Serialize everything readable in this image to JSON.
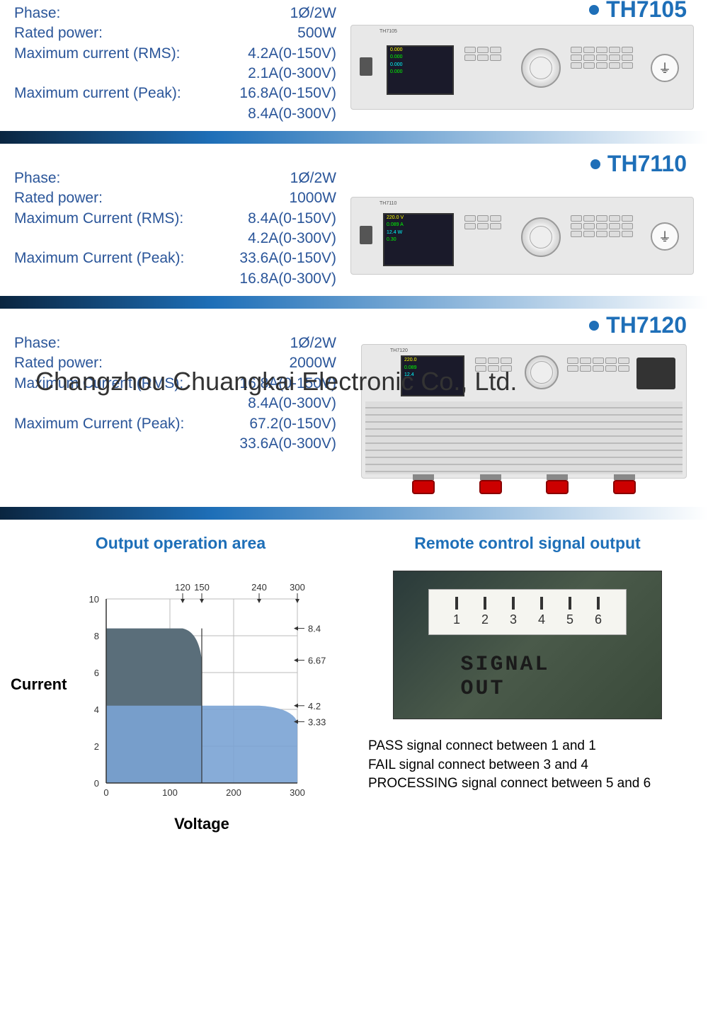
{
  "products": [
    {
      "title": "TH7105",
      "specs": [
        {
          "label": "Phase:",
          "value": "1Ø/2W"
        },
        {
          "label": "Rated power:",
          "value": "500W"
        },
        {
          "label": "Maximum current (RMS):",
          "value": "4.2A(0-150V)"
        },
        {
          "label": "",
          "value": "2.1A(0-300V)"
        },
        {
          "label": "Maximum current (Peak):",
          "value": "16.8A(0-150V)"
        },
        {
          "label": "",
          "value": "8.4A(0-300V)"
        }
      ]
    },
    {
      "title": "TH7110",
      "specs": [
        {
          "label": "Phase:",
          "value": "1Ø/2W"
        },
        {
          "label": "Rated power:",
          "value": "1000W"
        },
        {
          "label": "Maximum Current (RMS):",
          "value": "8.4A(0-150V)"
        },
        {
          "label": "",
          "value": "4.2A(0-300V)"
        },
        {
          "label": "Maximum Current (Peak):",
          "value": "33.6A(0-150V)"
        },
        {
          "label": "",
          "value": "16.8A(0-300V)"
        }
      ]
    },
    {
      "title": "TH7120",
      "specs": [
        {
          "label": "Phase:",
          "value": "1Ø/2W"
        },
        {
          "label": "Rated power:",
          "value": "2000W"
        },
        {
          "label": "Maximum Current (RMS):",
          "value": "16.8A(0-150V)"
        },
        {
          "label": "",
          "value": "8.4A(0-300V)"
        },
        {
          "label": "Maximum Current (Peak):",
          "value": "67.2(0-150V)"
        },
        {
          "label": "",
          "value": "33.6A(0-300V)"
        }
      ]
    }
  ],
  "watermark": "Changzhou Chuangkai Electronic Co., Ltd.",
  "chart": {
    "title": "Output operation area",
    "xlabel": "Voltage",
    "ylabel": "Current",
    "x_ticks": [
      0,
      100,
      200,
      300
    ],
    "y_ticks": [
      0,
      2,
      4,
      6,
      8,
      10
    ],
    "top_labels": [
      120,
      150,
      240,
      300
    ],
    "right_labels": [
      8.4,
      6.67,
      4.2,
      3.33
    ],
    "region1_color": "#5a6e7a",
    "region2_color": "#7aa3d4",
    "grid_color": "#bbb",
    "axis_color": "#333",
    "text_color": "#333"
  },
  "remote": {
    "title": "Remote control signal output",
    "connector_label": "SIGNAL OUT",
    "pins": [
      "1",
      "2",
      "3",
      "4",
      "5",
      "6"
    ],
    "notes": [
      "PASS signal connect between 1 and 1",
      "FAIL signal connect between 3 and 4",
      "PROCESSING signal connect between 5 and 6"
    ]
  }
}
